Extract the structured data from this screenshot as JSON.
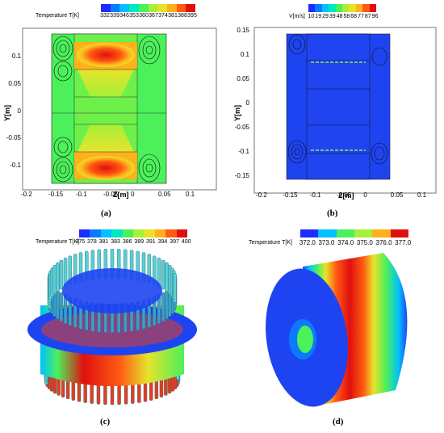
{
  "panel_a": {
    "caption": "(a)",
    "legend_title": "Temperature T[K]",
    "legend_values": [
      "332",
      "339",
      "346",
      "353",
      "360",
      "367",
      "374",
      "381",
      "388",
      "395"
    ],
    "legend_colors": [
      "#1e2cff",
      "#0a7bff",
      "#00c0ff",
      "#00e8c0",
      "#4cf05a",
      "#a6f03a",
      "#e6e32a",
      "#ffb01c",
      "#ff5a12",
      "#e01010"
    ],
    "xlabel": "Z[m]",
    "ylabel": "Y[m]",
    "xticks": [
      "-0.2",
      "-0.15",
      "-0.1",
      "-0.05",
      "0",
      "0.05",
      "0.1"
    ],
    "yticks": [
      "0.1",
      "0.05",
      "0",
      "-0.05",
      "-0.1"
    ]
  },
  "panel_b": {
    "caption": "(b)",
    "legend_title": "V[m/s]",
    "legend_values": [
      "10",
      "19",
      "29",
      "39",
      "48",
      "58",
      "68",
      "77",
      "87",
      "96"
    ],
    "legend_colors": [
      "#1e2cff",
      "#0a7bff",
      "#00c0ff",
      "#00e8c0",
      "#4cf05a",
      "#a6f03a",
      "#e6e32a",
      "#ffb01c",
      "#ff5a12",
      "#e01010"
    ],
    "xlabel": "Z[m]",
    "ylabel": "Y[m]",
    "xticks": [
      "-0.2",
      "-0.15",
      "-0.1",
      "-0.05",
      "0",
      "0.05",
      "0.1"
    ],
    "yticks": [
      "0.15",
      "0.1",
      "0.05",
      "0",
      "-0.05",
      "-0.1",
      "-0.15"
    ]
  },
  "panel_c": {
    "caption": "(c)",
    "legend_title": "Temperature T[K]",
    "legend_values": [
      "375",
      "378",
      "381",
      "383",
      "386",
      "389",
      "391",
      "394",
      "397",
      "400"
    ],
    "legend_colors": [
      "#1e2cff",
      "#0a7bff",
      "#00c0ff",
      "#00e8c0",
      "#4cf05a",
      "#a6f03a",
      "#e6e32a",
      "#ffb01c",
      "#ff5a12",
      "#e01010"
    ]
  },
  "panel_d": {
    "caption": "(d)",
    "legend_title": "Temperature T[K]",
    "legend_values": [
      "372.0",
      "373.0",
      "374.0",
      "375.0",
      "376.0",
      "377.0"
    ],
    "legend_colors": [
      "#1e2cff",
      "#0a7bff",
      "#00c0ff",
      "#00e8c0",
      "#4cf05a",
      "#a6f03a",
      "#e6e32a",
      "#ffb01c",
      "#ff5a12",
      "#e01010"
    ]
  }
}
